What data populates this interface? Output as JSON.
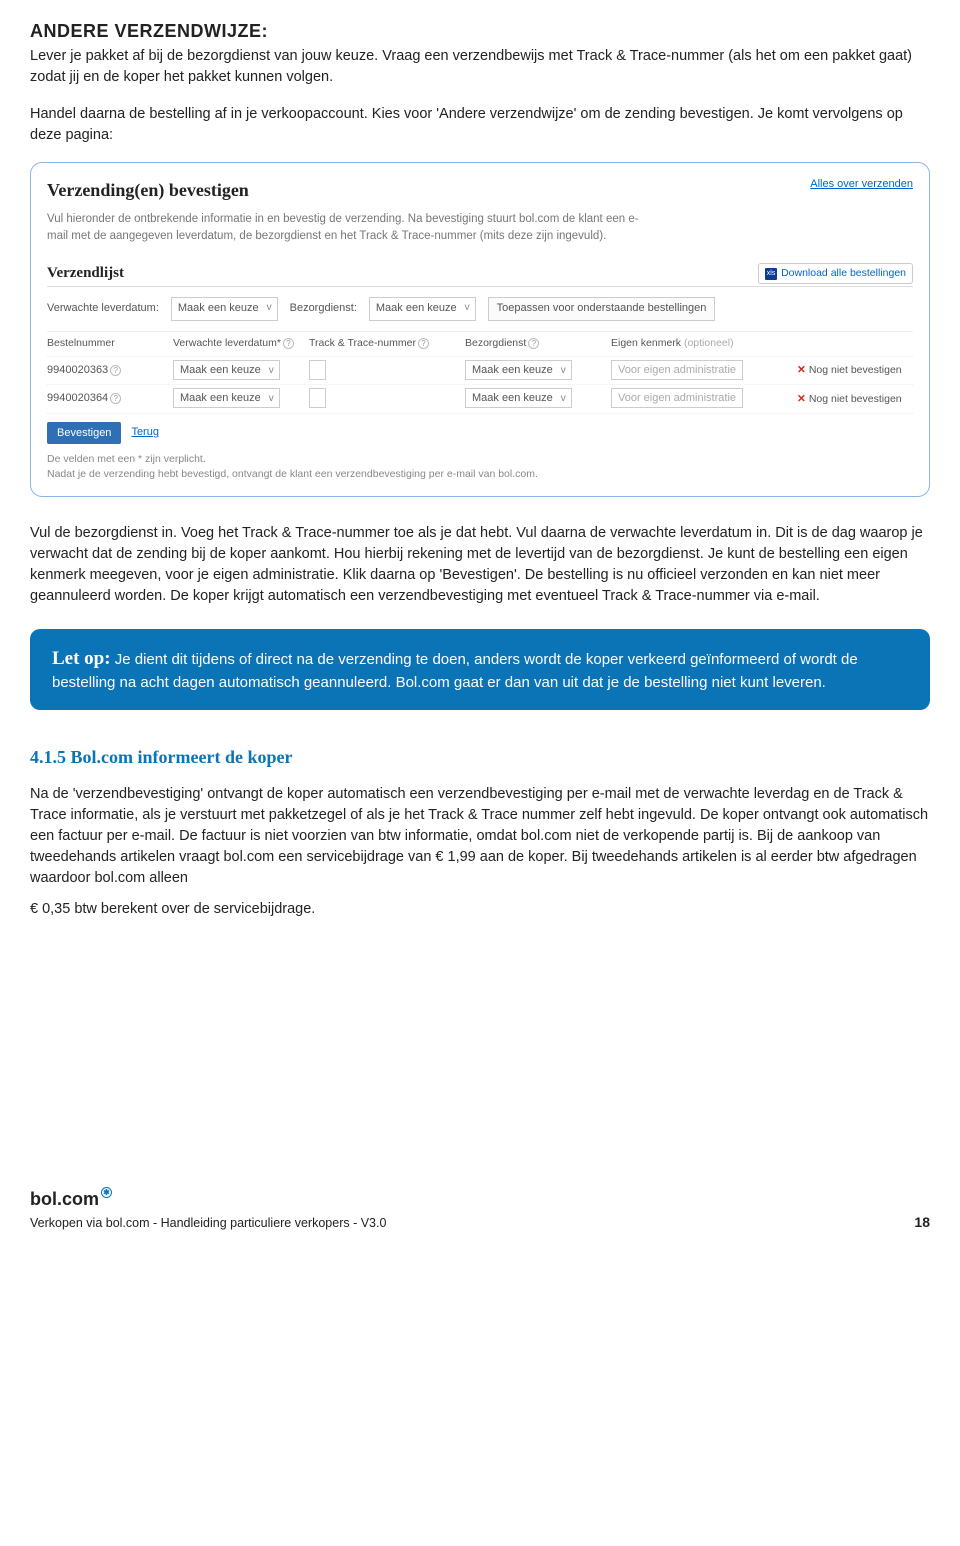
{
  "section": {
    "heading": "ANDERE VERZENDWIJZE:",
    "p1": "Lever je pakket af bij de bezorgdienst van jouw keuze. Vraag een verzendbewijs met Track & Trace-nummer (als het om een pakket gaat) zodat jij en de koper het pakket kunnen volgen.",
    "p2": "Handel daarna de bestelling af in je verkoopaccount. Kies voor 'Andere verzendwijze' om de zending bevestigen. Je komt vervolgens op deze pagina:"
  },
  "shot": {
    "title": "Verzending(en) bevestigen",
    "alles_link": "Alles over verzenden",
    "intro": "Vul hieronder de ontbrekende informatie in en bevestig de verzending. Na bevestiging stuurt bol.com de klant een e-mail met de aangegeven leverdatum, de bezorgdienst en het Track & Trace-nummer (mits deze zijn ingevuld).",
    "list_title": "Verzendlijst",
    "download": "Download alle bestellingen",
    "xls": "xls",
    "filter": {
      "lbl1": "Verwachte leverdatum:",
      "sel1": "Maak een keuze",
      "lbl2": "Bezorgdienst:",
      "sel2": "Maak een keuze",
      "apply": "Toepassen voor onderstaande bestellingen"
    },
    "cols": {
      "c1": "Bestelnummer",
      "c2": "Verwachte leverdatum*",
      "c3": "Track & Trace-nummer",
      "c4": "Bezorgdienst",
      "c5": "Eigen kenmerk",
      "c5opt": "(optioneel)"
    },
    "rows": [
      {
        "id": "9940020363",
        "sel": "Maak een keuze",
        "ph": "Voor eigen administratie",
        "status": "Nog niet bevestigen"
      },
      {
        "id": "9940020364",
        "sel": "Maak een keuze",
        "ph": "Voor eigen administratie",
        "status": "Nog niet bevestigen"
      }
    ],
    "confirm": "Bevestigen",
    "terug": "Terug",
    "foot1": "De velden met een * zijn verplicht.",
    "foot2": "Nadat je de verzending hebt bevestigd, ontvangt de klant een verzendbevestiging per e-mail van bol.com."
  },
  "after_p": "Vul de bezorgdienst in. Voeg het Track & Trace-nummer toe als je dat hebt. Vul daarna de verwachte leverdatum in. Dit is de dag waarop je verwacht dat de zending bij de koper aankomt. Hou hierbij rekening met de levertijd van de bezorgdienst. Je kunt de bestelling een eigen kenmerk meegeven, voor je eigen administratie. Klik daarna op 'Bevestigen'. De bestelling is nu officieel verzonden en kan niet meer geannuleerd worden. De koper krijgt automatisch een verzendbevestiging met eventueel Track & Trace-nummer via e-mail.",
  "callout": {
    "lead": "Let op:",
    "body": " Je dient dit tijdens of direct na de verzending te doen, anders wordt de koper verkeerd geïnformeerd of wordt de bestelling na acht dagen automatisch geannuleerd. Bol.com gaat er dan van uit dat je de bestelling niet kunt leveren."
  },
  "sec415": {
    "h": "4.1.5 Bol.com informeert de koper",
    "p": "Na de 'verzendbevestiging' ontvangt de koper automatisch een verzendbevestiging per e-mail met de verwachte leverdag en de Track & Trace informatie, als je verstuurt met pakketzegel of als je het Track & Trace nummer zelf hebt ingevuld. De koper ontvangt ook automatisch een factuur per e-mail. De factuur is niet voorzien van btw informatie, omdat bol.com niet de verkopende partij is. Bij de aankoop van tweedehands artikelen vraagt bol.com een servicebijdrage van € 1,99 aan de koper. Bij tweedehands artikelen is al eerder btw afgedragen waardoor bol.com alleen",
    "p2": "€ 0,35 btw berekent over de servicebijdrage."
  },
  "footer": {
    "logo": "bol.com",
    "line": "Verkopen via bol.com - Handleiding particuliere verkopers - V3.0",
    "page": "18"
  }
}
